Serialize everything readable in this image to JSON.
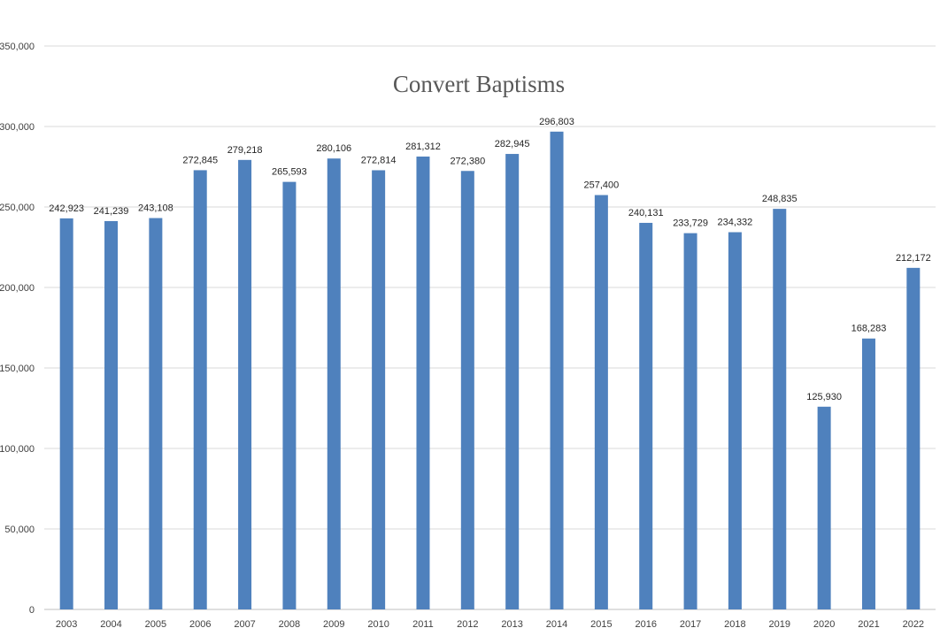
{
  "chart_data": {
    "type": "bar",
    "title": "Convert Baptisms",
    "xlabel": "",
    "ylabel": "",
    "categories": [
      "2003",
      "2004",
      "2005",
      "2006",
      "2007",
      "2008",
      "2009",
      "2010",
      "2011",
      "2012",
      "2013",
      "2014",
      "2015",
      "2016",
      "2017",
      "2018",
      "2019",
      "2020",
      "2021",
      "2022"
    ],
    "values": [
      242923,
      241239,
      243108,
      272845,
      279218,
      265593,
      280106,
      272814,
      281312,
      272380,
      282945,
      296803,
      257400,
      240131,
      233729,
      234332,
      248835,
      125930,
      168283,
      212172
    ],
    "data_labels": [
      "242,923",
      "241,239",
      "243,108",
      "272,845",
      "279,218",
      "265,593",
      "280,106",
      "272,814",
      "281,312",
      "272,380",
      "282,945",
      "296,803",
      "257,400",
      "240,131",
      "233,729",
      "234,332",
      "248,835",
      "125,930",
      "168,283",
      "212,172"
    ],
    "ylim": [
      0,
      350000
    ],
    "y_ticks": [
      0,
      50000,
      100000,
      150000,
      200000,
      250000,
      300000,
      350000
    ],
    "y_tick_labels": [
      "0",
      "50,000",
      "100,000",
      "150,000",
      "200,000",
      "250,000",
      "300,000",
      "350,000"
    ],
    "grid": true,
    "legend": "none",
    "bar_color": "#4f81bd"
  }
}
